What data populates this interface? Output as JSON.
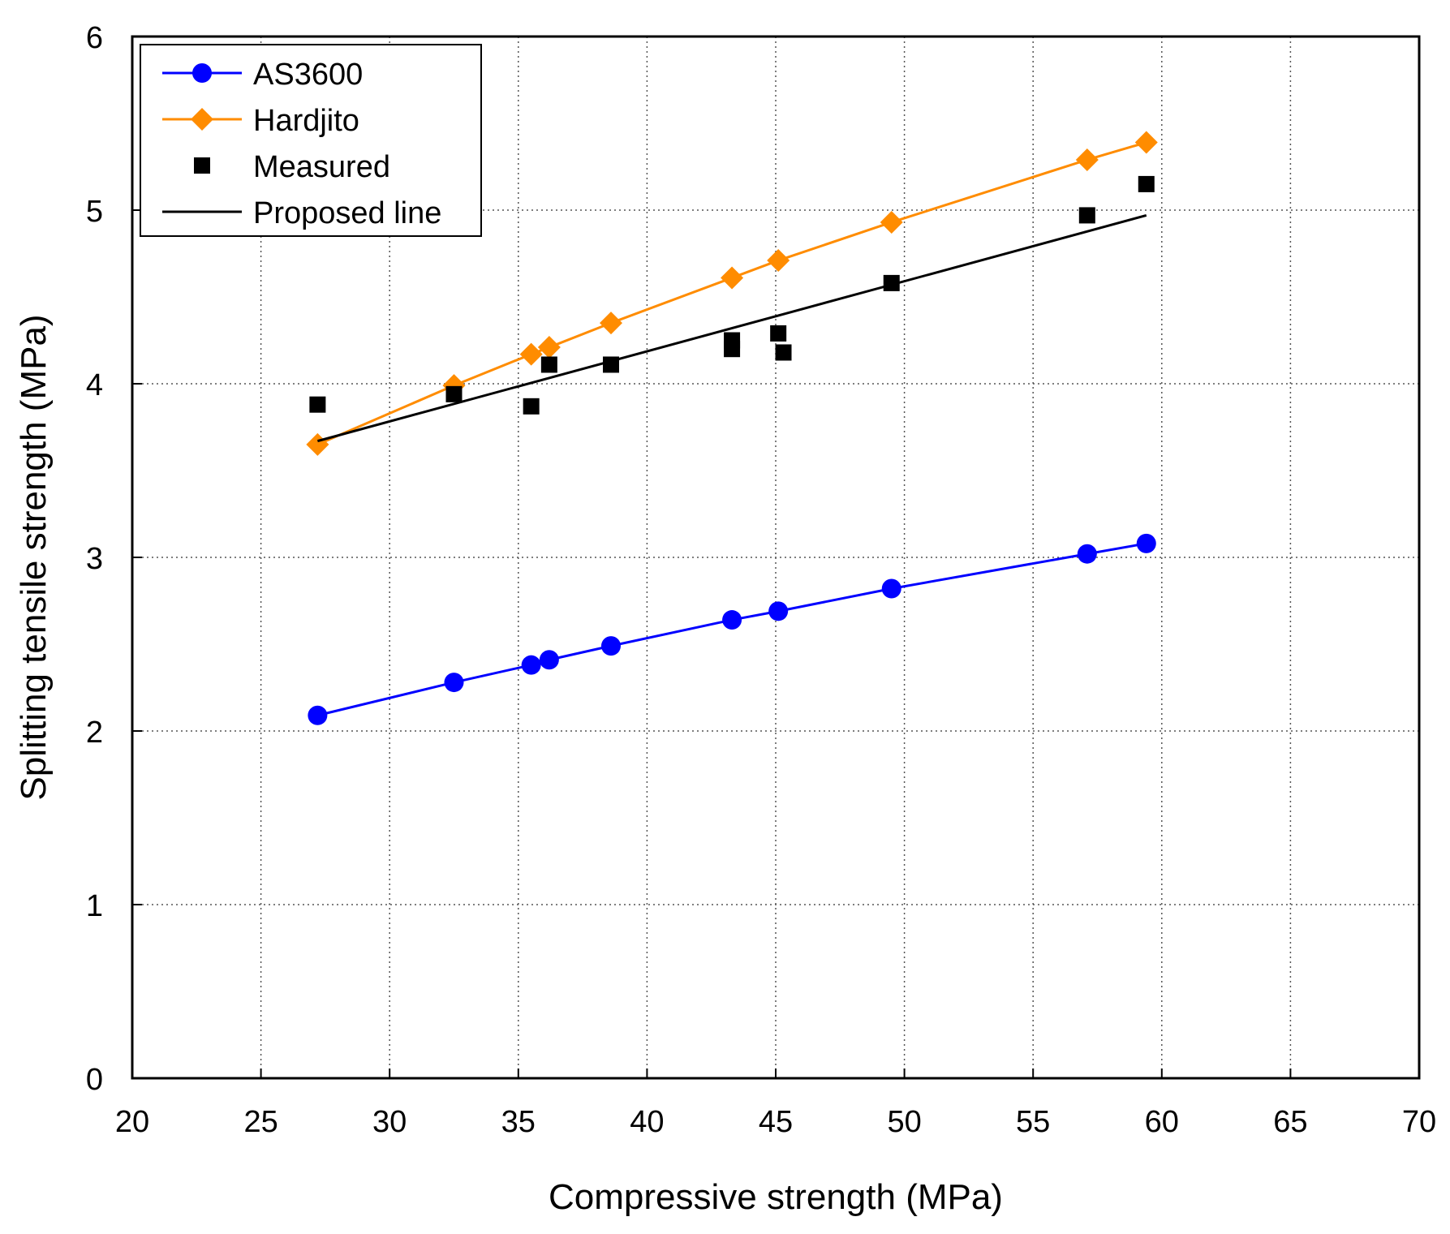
{
  "chart_data": {
    "type": "line",
    "xlabel": "Compressive strength (MPa)",
    "ylabel": "Splitting tensile strength (MPa)",
    "xlim": [
      20,
      70
    ],
    "ylim": [
      0,
      6
    ],
    "x_ticks": [
      "20",
      "25",
      "30",
      "35",
      "40",
      "45",
      "50",
      "55",
      "60",
      "65",
      "70"
    ],
    "y_ticks": [
      "0",
      "1",
      "2",
      "3",
      "4",
      "5",
      "6"
    ],
    "grid": true,
    "legend_position": "top-left",
    "series": [
      {
        "name": "AS3600",
        "kind": "line-marker",
        "marker": "circle",
        "color": "#0000ff",
        "points": [
          [
            27.2,
            2.09
          ],
          [
            32.5,
            2.28
          ],
          [
            35.5,
            2.38
          ],
          [
            36.2,
            2.41
          ],
          [
            38.6,
            2.49
          ],
          [
            43.3,
            2.64
          ],
          [
            45.1,
            2.69
          ],
          [
            49.5,
            2.82
          ],
          [
            57.1,
            3.02
          ],
          [
            59.4,
            3.08
          ]
        ]
      },
      {
        "name": "Hardjito",
        "kind": "line-marker",
        "marker": "diamond",
        "color": "#ff8c00",
        "points": [
          [
            27.2,
            3.65
          ],
          [
            32.5,
            3.99
          ],
          [
            35.5,
            4.17
          ],
          [
            36.2,
            4.21
          ],
          [
            38.6,
            4.35
          ],
          [
            43.3,
            4.61
          ],
          [
            45.1,
            4.71
          ],
          [
            49.5,
            4.93
          ],
          [
            57.1,
            5.29
          ],
          [
            59.4,
            5.39
          ]
        ]
      },
      {
        "name": "Measured",
        "kind": "scatter",
        "marker": "square",
        "color": "#000000",
        "points": [
          [
            27.2,
            3.88
          ],
          [
            32.5,
            3.94
          ],
          [
            35.5,
            3.87
          ],
          [
            36.2,
            4.11
          ],
          [
            38.6,
            4.11
          ],
          [
            43.3,
            4.25
          ],
          [
            43.3,
            4.2
          ],
          [
            45.1,
            4.29
          ],
          [
            45.3,
            4.18
          ],
          [
            49.5,
            4.58
          ],
          [
            57.1,
            4.97
          ],
          [
            59.4,
            5.15
          ]
        ]
      },
      {
        "name": "Proposed line",
        "kind": "line",
        "color": "#000000",
        "points": [
          [
            27.2,
            3.67
          ],
          [
            59.4,
            4.97
          ]
        ]
      }
    ]
  }
}
